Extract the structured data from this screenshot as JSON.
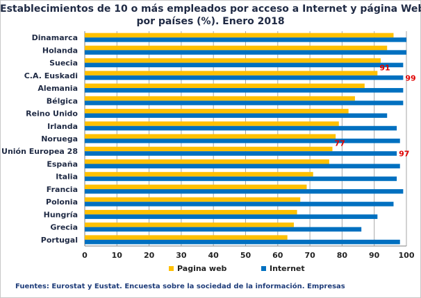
{
  "colors": {
    "pagina_web": "#FFC000",
    "internet": "#0070C0",
    "label_red": "#E00000",
    "grid": "#a6a6a6"
  },
  "chart_data": {
    "type": "bar",
    "orientation": "horizontal",
    "title_line1": "Establecimientos de 10 o más empleados por acceso a Internet y página Web,",
    "title_line2": "por países (%). Enero 2018",
    "categories": [
      "Dinamarca",
      "Holanda",
      "Suecia",
      "C.A. Euskadi",
      "Alemania",
      "Bélgica",
      "Reino Unido",
      "Irlanda",
      "Noruega",
      "Unión Europea 28",
      "España",
      "Italia",
      "Francia",
      "Polonia",
      "Hungría",
      "Grecia",
      "Portugal"
    ],
    "series": [
      {
        "name": "Pagina web",
        "values": [
          96,
          94,
          92,
          91,
          87,
          84,
          82,
          79,
          78,
          77,
          76,
          71,
          69,
          67,
          66,
          65,
          63
        ]
      },
      {
        "name": "Internet",
        "values": [
          100,
          100,
          99,
          99,
          99,
          99,
          94,
          97,
          98,
          97,
          98,
          97,
          99,
          96,
          91,
          86,
          98
        ]
      }
    ],
    "data_labels": [
      {
        "category": "C.A. Euskadi",
        "series": "Pagina web",
        "text": "91"
      },
      {
        "category": "C.A. Euskadi",
        "series": "Internet",
        "text": "99"
      },
      {
        "category": "Unión Europea 28",
        "series": "Pagina web",
        "text": "77"
      },
      {
        "category": "Unión Europea 28",
        "series": "Internet",
        "text": "97"
      }
    ],
    "xlim": [
      0,
      100
    ],
    "xticks": [
      "0",
      "10",
      "20",
      "30",
      "40",
      "50",
      "60",
      "70",
      "80",
      "90",
      "100"
    ],
    "grid": true,
    "legend": "bottom"
  },
  "legend": {
    "pagina_web": "Pagina web",
    "internet": "Internet"
  },
  "source": "Fuentes: Eurostat y Eustat. Encuesta sobre la sociedad de la información. Empresas"
}
